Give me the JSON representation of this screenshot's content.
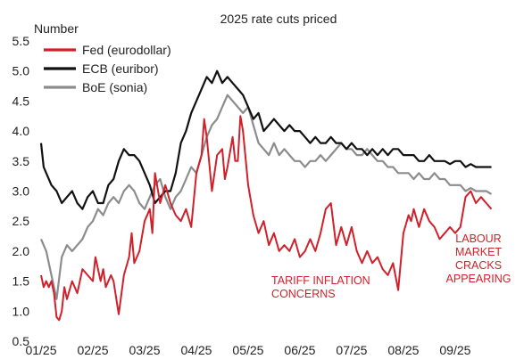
{
  "chart_data": {
    "type": "line",
    "title": "2025 rate cuts priced",
    "ylabel": "Number",
    "ylim": [
      0.5,
      5.5
    ],
    "yticks": [
      "0.5",
      "1.0",
      "1.5",
      "2.0",
      "2.5",
      "3.0",
      "3.5",
      "4.0",
      "4.5",
      "5.0",
      "5.5"
    ],
    "xtick_labels": [
      "01/25",
      "02/25",
      "03/25",
      "04/25",
      "05/25",
      "06/25",
      "07/25",
      "08/25",
      "09/25"
    ],
    "x_month_index": [
      0,
      1,
      2,
      3,
      4,
      5,
      6,
      7,
      8
    ],
    "grid": false,
    "legend_position": "top-left",
    "series": [
      {
        "name": "Fed (eurodollar)",
        "color": "#d0202a",
        "x": [
          0.0,
          0.05,
          0.1,
          0.15,
          0.2,
          0.25,
          0.3,
          0.35,
          0.4,
          0.45,
          0.5,
          0.6,
          0.7,
          0.8,
          0.9,
          1.0,
          1.05,
          1.1,
          1.15,
          1.2,
          1.25,
          1.3,
          1.35,
          1.4,
          1.5,
          1.6,
          1.7,
          1.75,
          1.8,
          1.9,
          2.0,
          2.1,
          2.15,
          2.2,
          2.3,
          2.4,
          2.5,
          2.6,
          2.7,
          2.8,
          2.9,
          3.0,
          3.1,
          3.15,
          3.2,
          3.3,
          3.4,
          3.5,
          3.55,
          3.6,
          3.7,
          3.75,
          3.8,
          3.85,
          3.9,
          4.0,
          4.1,
          4.2,
          4.3,
          4.4,
          4.5,
          4.6,
          4.7,
          4.8,
          4.9,
          5.0,
          5.1,
          5.2,
          5.3,
          5.4,
          5.5,
          5.6,
          5.7,
          5.8,
          5.9,
          6.0,
          6.1,
          6.2,
          6.3,
          6.4,
          6.5,
          6.6,
          6.7,
          6.8,
          6.9,
          7.0,
          7.1,
          7.15,
          7.2,
          7.3,
          7.4,
          7.5,
          7.6,
          7.7,
          7.8,
          7.9,
          8.0,
          8.1,
          8.2,
          8.3,
          8.4,
          8.5,
          8.6,
          8.7
        ],
        "values": [
          1.6,
          1.4,
          1.5,
          1.4,
          1.5,
          1.3,
          0.9,
          0.85,
          1.0,
          1.4,
          1.2,
          1.5,
          1.3,
          1.7,
          1.6,
          1.5,
          1.9,
          1.7,
          1.5,
          1.7,
          1.4,
          1.5,
          1.6,
          1.5,
          0.95,
          1.6,
          1.9,
          2.3,
          1.8,
          2.0,
          2.5,
          2.7,
          2.3,
          3.3,
          2.8,
          3.1,
          2.8,
          2.6,
          2.5,
          2.7,
          2.4,
          3.3,
          3.6,
          4.2,
          3.9,
          3.0,
          3.6,
          3.7,
          3.2,
          3.4,
          3.9,
          3.5,
          3.5,
          4.25,
          4.0,
          3.1,
          2.6,
          2.3,
          2.5,
          2.1,
          2.3,
          2.0,
          2.1,
          2.0,
          2.2,
          1.9,
          2.0,
          2.2,
          2.0,
          2.3,
          2.7,
          2.8,
          2.1,
          2.4,
          2.1,
          2.4,
          2.0,
          1.8,
          2.0,
          1.8,
          1.9,
          1.7,
          1.6,
          1.8,
          1.35,
          2.3,
          2.6,
          2.5,
          2.7,
          2.4,
          2.7,
          2.5,
          2.4,
          2.2,
          2.3,
          2.4,
          2.3,
          2.4,
          2.9,
          3.0,
          2.8,
          2.9,
          2.8,
          2.7
        ]
      },
      {
        "name": "ECB (euribor)",
        "color": "#111111",
        "x": [
          0.0,
          0.05,
          0.1,
          0.2,
          0.3,
          0.4,
          0.5,
          0.6,
          0.7,
          0.8,
          0.9,
          1.0,
          1.1,
          1.2,
          1.3,
          1.4,
          1.5,
          1.6,
          1.7,
          1.8,
          1.9,
          2.0,
          2.1,
          2.2,
          2.3,
          2.4,
          2.5,
          2.6,
          2.7,
          2.8,
          2.9,
          3.0,
          3.1,
          3.2,
          3.3,
          3.4,
          3.5,
          3.6,
          3.7,
          3.8,
          3.9,
          4.0,
          4.1,
          4.2,
          4.3,
          4.4,
          4.5,
          4.6,
          4.7,
          4.8,
          4.9,
          5.0,
          5.1,
          5.2,
          5.3,
          5.4,
          5.5,
          5.6,
          5.7,
          5.8,
          5.9,
          6.0,
          6.1,
          6.2,
          6.3,
          6.4,
          6.5,
          6.6,
          6.7,
          6.8,
          6.9,
          7.0,
          7.1,
          7.2,
          7.3,
          7.4,
          7.5,
          7.6,
          7.7,
          7.8,
          7.9,
          8.0,
          8.1,
          8.2,
          8.3,
          8.4,
          8.5,
          8.6,
          8.7
        ],
        "values": [
          3.8,
          3.4,
          3.3,
          3.1,
          3.0,
          2.8,
          2.9,
          3.0,
          2.8,
          2.7,
          2.9,
          3.0,
          2.8,
          2.8,
          3.1,
          3.2,
          3.5,
          3.7,
          3.6,
          3.6,
          3.5,
          3.3,
          3.1,
          2.8,
          2.9,
          3.0,
          3.0,
          3.3,
          3.8,
          4.0,
          4.3,
          4.5,
          4.7,
          4.9,
          4.8,
          5.0,
          4.8,
          4.9,
          4.8,
          4.7,
          4.6,
          4.4,
          4.2,
          4.3,
          4.0,
          4.1,
          4.2,
          4.1,
          4.0,
          4.1,
          4.0,
          4.0,
          3.9,
          3.8,
          3.9,
          3.8,
          3.8,
          3.9,
          3.8,
          3.8,
          3.7,
          3.8,
          3.7,
          3.7,
          3.6,
          3.7,
          3.6,
          3.7,
          3.6,
          3.7,
          3.7,
          3.6,
          3.6,
          3.6,
          3.5,
          3.5,
          3.6,
          3.5,
          3.5,
          3.5,
          3.45,
          3.5,
          3.5,
          3.4,
          3.45,
          3.4,
          3.4,
          3.4,
          3.4
        ]
      },
      {
        "name": "BoE (sonia)",
        "color": "#8c8c8c",
        "x": [
          0.0,
          0.05,
          0.1,
          0.2,
          0.3,
          0.4,
          0.5,
          0.6,
          0.7,
          0.8,
          0.9,
          1.0,
          1.1,
          1.2,
          1.3,
          1.4,
          1.5,
          1.6,
          1.7,
          1.8,
          1.9,
          2.0,
          2.1,
          2.2,
          2.3,
          2.4,
          2.5,
          2.6,
          2.7,
          2.8,
          2.9,
          3.0,
          3.1,
          3.2,
          3.3,
          3.4,
          3.5,
          3.6,
          3.7,
          3.8,
          3.9,
          4.0,
          4.1,
          4.2,
          4.3,
          4.4,
          4.5,
          4.6,
          4.7,
          4.8,
          4.9,
          5.0,
          5.1,
          5.2,
          5.3,
          5.4,
          5.5,
          5.6,
          5.7,
          5.8,
          5.9,
          6.0,
          6.1,
          6.2,
          6.3,
          6.4,
          6.5,
          6.6,
          6.7,
          6.8,
          6.9,
          7.0,
          7.1,
          7.2,
          7.3,
          7.4,
          7.5,
          7.6,
          7.7,
          7.8,
          7.9,
          8.0,
          8.1,
          8.2,
          8.3,
          8.4,
          8.5,
          8.6,
          8.7
        ],
        "values": [
          2.2,
          2.1,
          2.0,
          1.6,
          1.2,
          1.9,
          2.1,
          2.0,
          2.1,
          2.2,
          2.4,
          2.5,
          2.7,
          2.6,
          2.8,
          2.9,
          2.8,
          3.0,
          3.1,
          3.0,
          2.8,
          2.7,
          2.9,
          3.1,
          3.2,
          2.9,
          2.7,
          2.9,
          3.0,
          3.2,
          3.4,
          3.3,
          3.6,
          3.9,
          4.1,
          4.2,
          4.4,
          4.6,
          4.5,
          4.4,
          4.3,
          4.4,
          4.1,
          3.8,
          3.7,
          3.6,
          3.8,
          3.6,
          3.7,
          3.6,
          3.5,
          3.5,
          3.4,
          3.5,
          3.5,
          3.6,
          3.5,
          3.6,
          3.7,
          3.8,
          3.7,
          3.7,
          3.6,
          3.6,
          3.7,
          3.6,
          3.5,
          3.5,
          3.4,
          3.4,
          3.3,
          3.3,
          3.3,
          3.2,
          3.3,
          3.2,
          3.2,
          3.3,
          3.2,
          3.2,
          3.1,
          3.1,
          3.1,
          3.0,
          3.05,
          3.0,
          3.0,
          3.0,
          2.95
        ]
      }
    ],
    "annotations": [
      {
        "lines": [
          "TARIFF INFLATION",
          "CONCERNS"
        ],
        "anchor": "start",
        "x": 4.45,
        "y": 1.45
      },
      {
        "lines": [
          "LABOUR",
          "MARKET",
          "CRACKS",
          "APPEARING"
        ],
        "anchor": "middle",
        "x": 8.45,
        "y": 2.15
      }
    ]
  }
}
